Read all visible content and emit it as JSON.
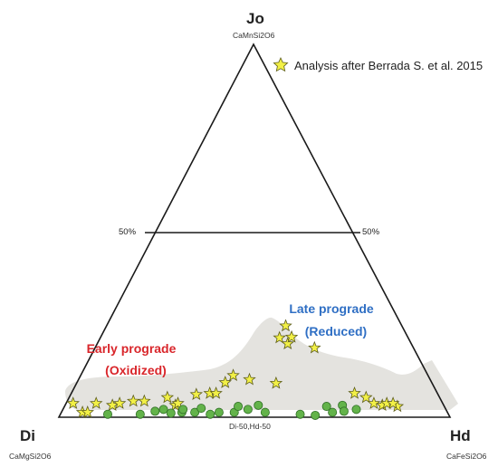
{
  "vertices": {
    "top": {
      "label": "Jo",
      "formula": "CaMnSi2O6"
    },
    "left": {
      "label": "Di",
      "formula": "CaMgSi2O6"
    },
    "right": {
      "label": "Hd",
      "formula": "CaFeSi2O6"
    }
  },
  "midline": {
    "left_label": "50%",
    "right_label": "50%"
  },
  "base_label": "Di-50,Hd-50",
  "legend": {
    "star_label": "Analysis after Berrada S. et al. 2015"
  },
  "fields": {
    "early": {
      "line1": "Early prograde",
      "line2": "(Oxidized)",
      "color": "#d9262b"
    },
    "late": {
      "line1": "Late prograde",
      "line2": "(Reduced)",
      "color": "#2f6fc4"
    }
  },
  "colors": {
    "star_fill": "#f2f046",
    "dot_fill": "#63b34a",
    "field_shade": "#e4e3df"
  },
  "chart_data": {
    "type": "ternary",
    "components": [
      "Jo",
      "Di",
      "Hd"
    ],
    "series": [
      {
        "marker": "star",
        "points": [
          {
            "Jo": 3.7,
            "Di": 94.5,
            "Hd": 1.8
          },
          {
            "Jo": 1.3,
            "Di": 93.3,
            "Hd": 5.4
          },
          {
            "Jo": 1.3,
            "Di": 92.0,
            "Hd": 6.7
          },
          {
            "Jo": 3.7,
            "Di": 88.6,
            "Hd": 7.7
          },
          {
            "Jo": 3.2,
            "Di": 84.7,
            "Hd": 12.1
          },
          {
            "Jo": 3.7,
            "Di": 82.6,
            "Hd": 13.7
          },
          {
            "Jo": 4.3,
            "Di": 78.8,
            "Hd": 16.9
          },
          {
            "Jo": 4.3,
            "Di": 76.0,
            "Hd": 19.7
          },
          {
            "Jo": 5.3,
            "Di": 69.6,
            "Hd": 25.1
          },
          {
            "Jo": 3.2,
            "Di": 68.6,
            "Hd": 28.2
          },
          {
            "Jo": 6.1,
            "Di": 61.8,
            "Hd": 32.1
          },
          {
            "Jo": 6.4,
            "Di": 58.2,
            "Hd": 35.4
          },
          {
            "Jo": 6.4,
            "Di": 56.6,
            "Hd": 37.0
          },
          {
            "Jo": 9.3,
            "Di": 52.8,
            "Hd": 37.9
          },
          {
            "Jo": 11.2,
            "Di": 49.8,
            "Hd": 39.0
          },
          {
            "Jo": 10.1,
            "Di": 46.2,
            "Hd": 43.7
          },
          {
            "Jo": 21.3,
            "Di": 32.9,
            "Hd": 45.8
          },
          {
            "Jo": 24.5,
            "Di": 29.7,
            "Hd": 45.8
          },
          {
            "Jo": 19.7,
            "Di": 31.6,
            "Hd": 48.7
          },
          {
            "Jo": 21.5,
            "Di": 29.7,
            "Hd": 48.8
          },
          {
            "Jo": 18.6,
            "Di": 25.3,
            "Hd": 56.1
          },
          {
            "Jo": 6.4,
            "Di": 21.2,
            "Hd": 72.4
          },
          {
            "Jo": 5.3,
            "Di": 18.8,
            "Hd": 75.9
          },
          {
            "Jo": 3.7,
            "Di": 17.6,
            "Hd": 78.7
          },
          {
            "Jo": 3.2,
            "Di": 15.7,
            "Hd": 81.1
          },
          {
            "Jo": 3.7,
            "Di": 14.3,
            "Hd": 82.0
          },
          {
            "Jo": 2.9,
            "Di": 12.0,
            "Hd": 85.1
          },
          {
            "Jo": 3.7,
            "Di": 12.7,
            "Hd": 83.6
          },
          {
            "Jo": 3.7,
            "Di": 67.7,
            "Hd": 28.6
          },
          {
            "Jo": 9.1,
            "Di": 39.9,
            "Hd": 51.0
          }
        ]
      },
      {
        "marker": "circle",
        "points": [
          {
            "Jo": 0.8,
            "Di": 87.1,
            "Hd": 12.1
          },
          {
            "Jo": 0.8,
            "Di": 78.8,
            "Hd": 20.4
          },
          {
            "Jo": 1.6,
            "Di": 74.6,
            "Hd": 23.8
          },
          {
            "Jo": 2.1,
            "Di": 72.2,
            "Hd": 25.7
          },
          {
            "Jo": 1.1,
            "Di": 70.8,
            "Hd": 28.1
          },
          {
            "Jo": 1.3,
            "Di": 67.9,
            "Hd": 30.8
          },
          {
            "Jo": 2.1,
            "Di": 67.2,
            "Hd": 30.7
          },
          {
            "Jo": 1.3,
            "Di": 64.6,
            "Hd": 34.1
          },
          {
            "Jo": 2.4,
            "Di": 62.4,
            "Hd": 35.2
          },
          {
            "Jo": 0.8,
            "Di": 60.9,
            "Hd": 38.3
          },
          {
            "Jo": 1.3,
            "Di": 58.4,
            "Hd": 40.3
          },
          {
            "Jo": 1.3,
            "Di": 54.5,
            "Hd": 44.2
          },
          {
            "Jo": 2.9,
            "Di": 52.7,
            "Hd": 44.4
          },
          {
            "Jo": 2.1,
            "Di": 50.6,
            "Hd": 47.3
          },
          {
            "Jo": 3.2,
            "Di": 47.4,
            "Hd": 49.4
          },
          {
            "Jo": 1.3,
            "Di": 46.6,
            "Hd": 52.1
          },
          {
            "Jo": 0.8,
            "Di": 37.9,
            "Hd": 61.3
          },
          {
            "Jo": 0.5,
            "Di": 34.2,
            "Hd": 65.3
          },
          {
            "Jo": 2.9,
            "Di": 30.1,
            "Hd": 67.0
          },
          {
            "Jo": 1.3,
            "Di": 29.4,
            "Hd": 69.3
          },
          {
            "Jo": 3.2,
            "Di": 25.9,
            "Hd": 70.9
          },
          {
            "Jo": 1.6,
            "Di": 26.3,
            "Hd": 72.1
          },
          {
            "Jo": 2.1,
            "Di": 22.9,
            "Hd": 75.0
          }
        ]
      }
    ]
  }
}
